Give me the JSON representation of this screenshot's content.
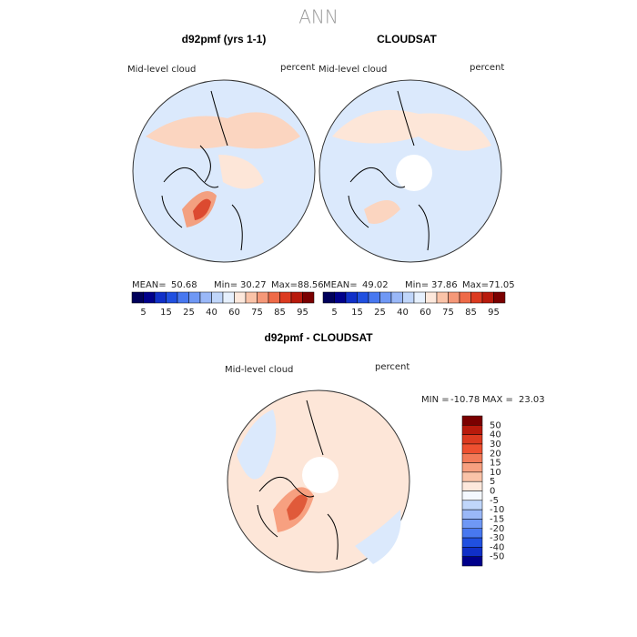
{
  "title": "ANN",
  "panels": [
    {
      "title": "d92pmf (yrs 1-1)",
      "variable": "Mid-level cloud",
      "units": "percent",
      "stats": {
        "mean_label": "MEAN=",
        "mean": 50.68,
        "min_label": "Min=",
        "min": 30.27,
        "max_label": "Max=",
        "max": 88.56
      }
    },
    {
      "title": "CLOUDSAT",
      "variable": "Mid-level cloud",
      "units": "percent",
      "stats": {
        "mean_label": "MEAN=",
        "mean": 49.02,
        "min_label": "Min=",
        "min": 37.86,
        "max_label": "Max=",
        "max": 71.05
      }
    }
  ],
  "colorbar": {
    "ticks": [
      5,
      15,
      25,
      40,
      60,
      75,
      85,
      95
    ],
    "colors": [
      "#00005a",
      "#00008b",
      "#1030c8",
      "#2050e0",
      "#4878f0",
      "#6f98f5",
      "#9ab8f8",
      "#c0d6fa",
      "#e6f0fd",
      "#fde8dc",
      "#fac3a8",
      "#f59878",
      "#ee6a48",
      "#dc3a20",
      "#b81a0c",
      "#7a0000"
    ]
  },
  "difference": {
    "title": "d92pmf - CLOUDSAT",
    "variable": "Mid-level cloud",
    "units": "percent",
    "min_label": "MIN =",
    "min": -10.78,
    "max_label": "MAX =",
    "max": 23.03,
    "colorbar": {
      "ticks": [
        50,
        40,
        30,
        20,
        15,
        10,
        5,
        0,
        -5,
        -10,
        -15,
        -20,
        -30,
        -40,
        -50
      ],
      "colors": [
        "#7a0000",
        "#b81a0c",
        "#dc3a20",
        "#ee5030",
        "#f27a58",
        "#f7a080",
        "#fac3a8",
        "#fde8dc",
        "#f4f8fe",
        "#c0d6fa",
        "#9ab8f8",
        "#6f98f5",
        "#4878f0",
        "#2050e0",
        "#1030c8",
        "#00008b"
      ]
    }
  }
}
